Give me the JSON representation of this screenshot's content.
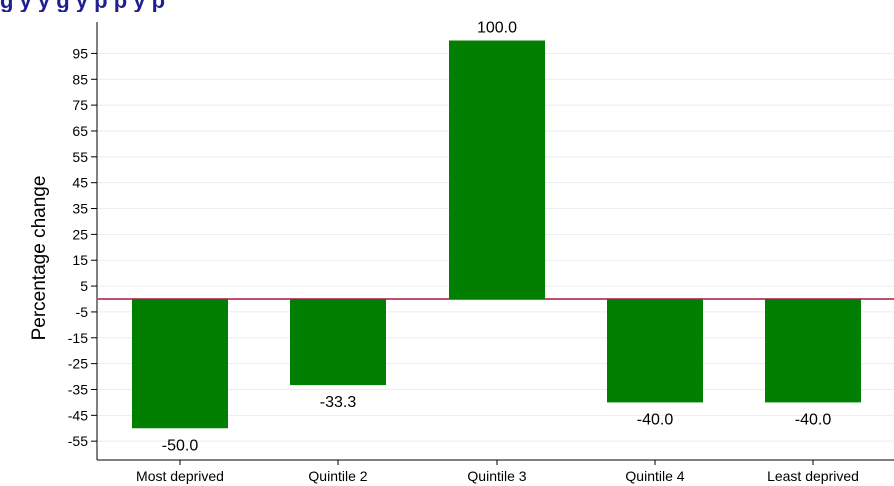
{
  "title_fragment": "g y                                                        y g   y  p p                   y  p",
  "chart_data": {
    "type": "bar",
    "categories": [
      "Most deprived",
      "Quintile 2",
      "Quintile 3",
      "Quintile 4",
      "Least deprived"
    ],
    "values": [
      -50.0,
      -33.3,
      100.0,
      -40.0,
      -40.0
    ],
    "value_labels": [
      "-50.0",
      "-33.3",
      "100.0",
      "-40.0",
      "-40.0"
    ],
    "ylabel": "Percentage change",
    "xlabel": "",
    "ylim": [
      -60,
      105
    ],
    "yticks": [
      95,
      85,
      75,
      65,
      55,
      45,
      35,
      25,
      15,
      5,
      -5,
      -15,
      -25,
      -35,
      -45,
      -55
    ],
    "grid": true,
    "reference_line": 0,
    "colors": {
      "bar": "#007f00",
      "reference_line": "#c0506f",
      "grid": "#e6eef2",
      "axis": "#000000"
    }
  }
}
